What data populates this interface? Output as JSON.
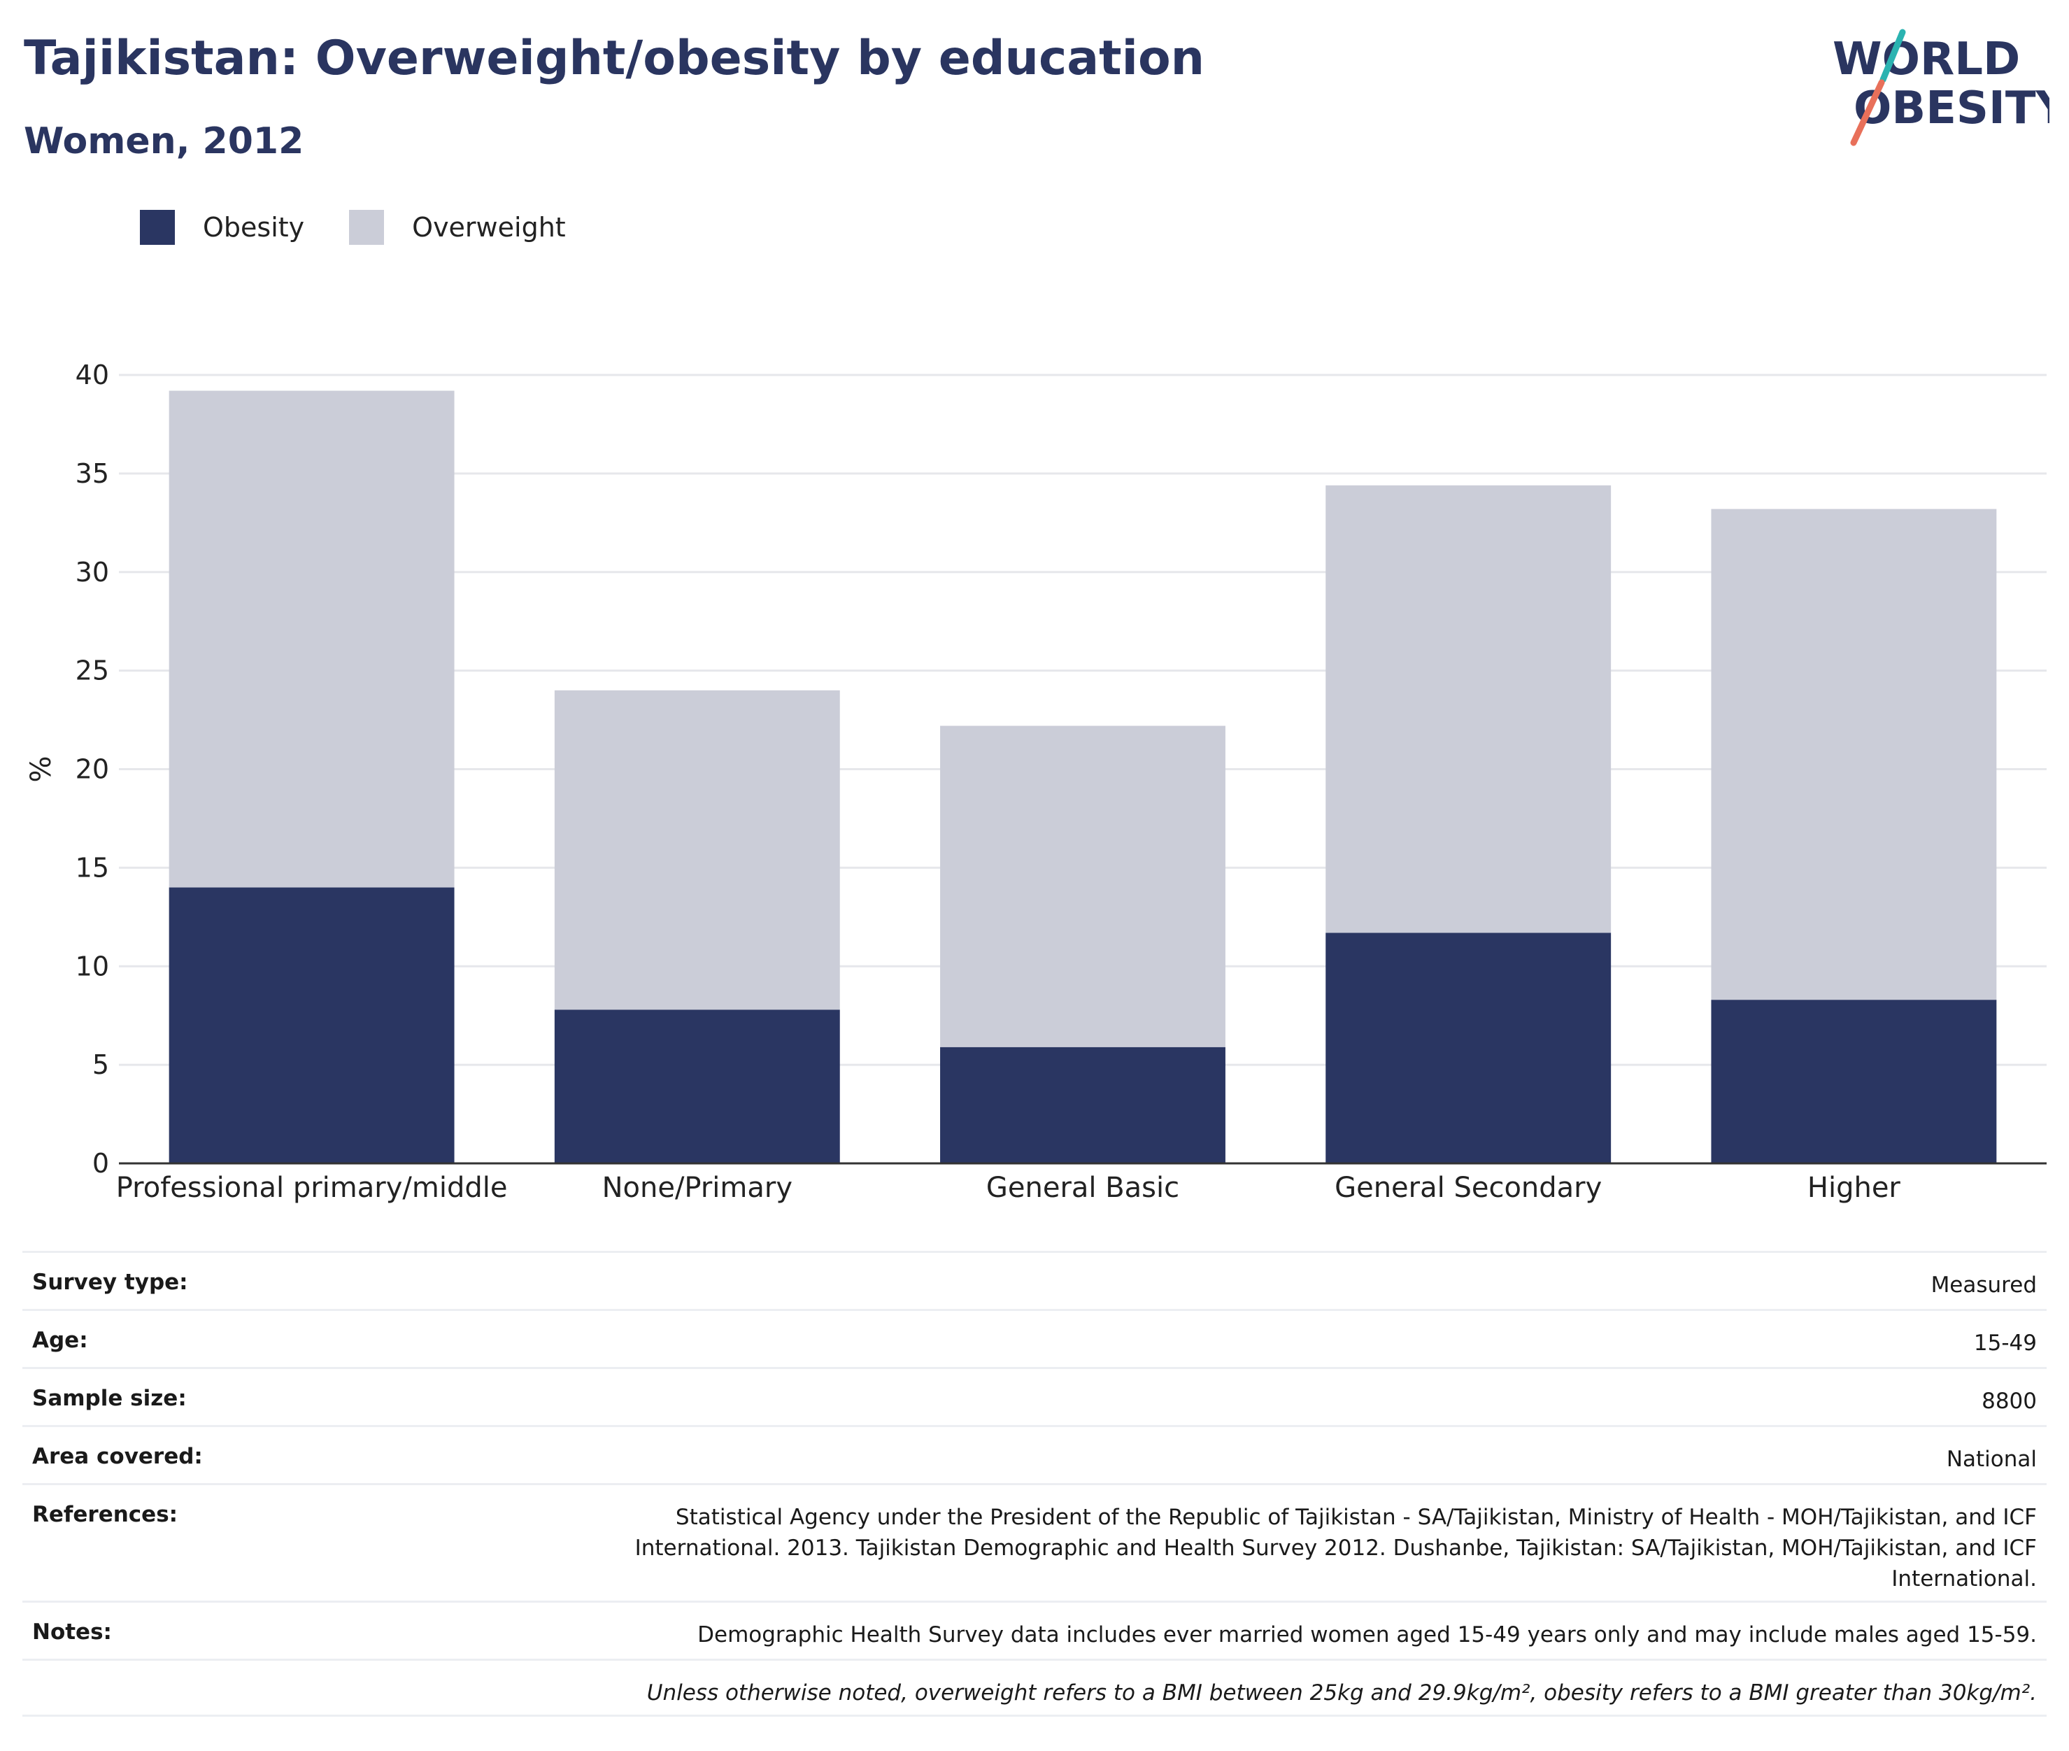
{
  "header": {
    "title": "Tajikistan: Overweight/obesity by education",
    "subtitle": "Women, 2012"
  },
  "logo": {
    "line1": "WORLD",
    "line2": "OBESITY"
  },
  "legend": [
    {
      "label": "Obesity",
      "color": "#2a3662"
    },
    {
      "label": "Overweight",
      "color": "#cbcdd8"
    }
  ],
  "chart_data": {
    "type": "bar",
    "stacked": true,
    "ylabel": "%",
    "ylim": [
      0,
      40
    ],
    "yticks": [
      0,
      5,
      10,
      15,
      20,
      25,
      30,
      35,
      40
    ],
    "grid": true,
    "legend_position": "top-left",
    "categories": [
      "Professional primary/middle",
      "None/Primary",
      "General Basic",
      "General Secondary",
      "Higher"
    ],
    "series": [
      {
        "name": "Obesity",
        "color": "#2a3662",
        "values": [
          14.0,
          7.8,
          5.9,
          11.7,
          8.3
        ]
      },
      {
        "name": "Overweight",
        "color": "#cbcdd8",
        "values": [
          25.2,
          16.2,
          16.3,
          22.7,
          24.9
        ]
      }
    ]
  },
  "meta": {
    "rows": [
      {
        "key": "Survey type:",
        "value": "Measured"
      },
      {
        "key": "Age:",
        "value": "15-49"
      },
      {
        "key": "Sample size:",
        "value": "8800"
      },
      {
        "key": "Area covered:",
        "value": "National"
      },
      {
        "key": "References:",
        "value": "Statistical Agency under the President of the Republic of Tajikistan - SA/Tajikistan, Ministry of Health - MOH/Tajikistan, and ICF International. 2013. Tajikistan Demographic and Health Survey 2012. Dushanbe, Tajikistan: SA/Tajikistan, MOH/Tajikistan, and ICF International."
      },
      {
        "key": "Notes:",
        "value": "Demographic Health Survey data includes ever married women aged 15-49 years only and may include males aged 15-59."
      },
      {
        "key": "",
        "value": "Unless otherwise noted, overweight refers to a BMI between 25kg and 29.9kg/m², obesity refers to a BMI greater than 30kg/m²."
      }
    ]
  }
}
